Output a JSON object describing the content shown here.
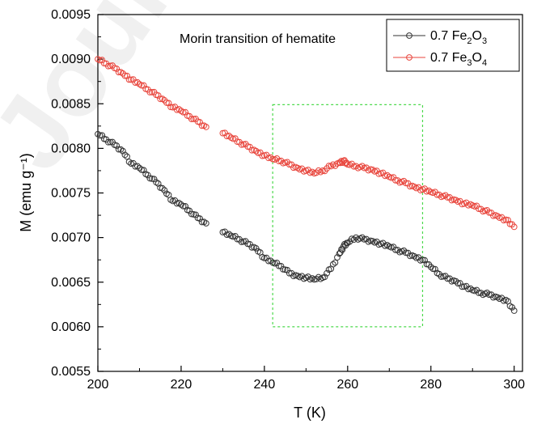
{
  "watermark_text": "Journal",
  "chart_data": {
    "type": "scatter",
    "title": "",
    "annotation": "Morin transition of hematite",
    "xlabel": "T (K)",
    "ylabel": "M (emu g⁻¹)",
    "xlim": [
      200,
      302
    ],
    "ylim": [
      0.0055,
      0.0095
    ],
    "xticks": [
      "200",
      "220",
      "240",
      "260",
      "280",
      "300"
    ],
    "yticks": [
      "0.0055",
      "0.0060",
      "0.0065",
      "0.0070",
      "0.0075",
      "0.0080",
      "0.0085",
      "0.0090",
      "0.0095"
    ],
    "grid": false,
    "legend_position": "top-right",
    "highlight_box": {
      "x": [
        242,
        278
      ],
      "y": [
        0.006,
        0.00849
      ],
      "color": "#4cd94c"
    },
    "series": [
      {
        "name": "0.7 Fe2O3",
        "label_parts": [
          "0.7 Fe",
          "2",
          "O",
          "3"
        ],
        "color": "#333333",
        "points": [
          [
            200,
            0.00816
          ],
          [
            202,
            0.0081
          ],
          [
            204,
            0.00804
          ],
          [
            206,
            0.00797
          ],
          [
            208,
            0.00783
          ],
          [
            210,
            0.00778
          ],
          [
            212,
            0.0077
          ],
          [
            214,
            0.00762
          ],
          [
            216,
            0.00753
          ],
          [
            218,
            0.00741
          ],
          [
            220,
            0.00737
          ],
          [
            222,
            0.0073
          ],
          [
            224,
            0.00722
          ],
          [
            226,
            0.00716
          ],
          [
            230,
            0.00706
          ],
          [
            232,
            0.00702
          ],
          [
            234,
            0.00698
          ],
          [
            236,
            0.00693
          ],
          [
            238,
            0.00688
          ],
          [
            240,
            0.00677
          ],
          [
            242,
            0.00672
          ],
          [
            244,
            0.00668
          ],
          [
            246,
            0.0066
          ],
          [
            248,
            0.00657
          ],
          [
            250,
            0.00655
          ],
          [
            252,
            0.00653
          ],
          [
            254,
            0.00655
          ],
          [
            256,
            0.00665
          ],
          [
            258,
            0.00682
          ],
          [
            259,
            0.0069
          ],
          [
            260,
            0.00694
          ],
          [
            262,
            0.007
          ],
          [
            264,
            0.00698
          ],
          [
            266,
            0.00696
          ],
          [
            268,
            0.00693
          ],
          [
            270,
            0.0069
          ],
          [
            272,
            0.00686
          ],
          [
            274,
            0.00683
          ],
          [
            276,
            0.00679
          ],
          [
            278,
            0.00675
          ],
          [
            280,
            0.00667
          ],
          [
            282,
            0.00659
          ],
          [
            284,
            0.00654
          ],
          [
            286,
            0.00651
          ],
          [
            288,
            0.00645
          ],
          [
            290,
            0.00641
          ],
          [
            292,
            0.00638
          ],
          [
            294,
            0.00636
          ],
          [
            296,
            0.00633
          ],
          [
            298,
            0.0063
          ],
          [
            300,
            0.00618
          ]
        ]
      },
      {
        "name": "0.7 Fe3O4",
        "label_parts": [
          "0.7 Fe",
          "3",
          "O",
          "4"
        ],
        "color": "#e8453c",
        "points": [
          [
            200,
            0.009
          ],
          [
            202,
            0.00895
          ],
          [
            204,
            0.0089
          ],
          [
            206,
            0.00884
          ],
          [
            208,
            0.00877
          ],
          [
            210,
            0.00872
          ],
          [
            212,
            0.00866
          ],
          [
            214,
            0.0086
          ],
          [
            216,
            0.00854
          ],
          [
            218,
            0.00846
          ],
          [
            220,
            0.00842
          ],
          [
            222,
            0.00836
          ],
          [
            224,
            0.0083
          ],
          [
            226,
            0.00824
          ],
          [
            230,
            0.00817
          ],
          [
            232,
            0.00812
          ],
          [
            234,
            0.00807
          ],
          [
            236,
            0.00802
          ],
          [
            238,
            0.00797
          ],
          [
            240,
            0.00792
          ],
          [
            242,
            0.00788
          ],
          [
            244,
            0.00786
          ],
          [
            246,
            0.00782
          ],
          [
            248,
            0.00778
          ],
          [
            250,
            0.00775
          ],
          [
            252,
            0.00772
          ],
          [
            254,
            0.00775
          ],
          [
            256,
            0.0078
          ],
          [
            258,
            0.00784
          ],
          [
            259,
            0.00786
          ],
          [
            260,
            0.00782
          ],
          [
            262,
            0.0078
          ],
          [
            264,
            0.00778
          ],
          [
            266,
            0.00776
          ],
          [
            268,
            0.00772
          ],
          [
            270,
            0.00768
          ],
          [
            272,
            0.00764
          ],
          [
            274,
            0.00761
          ],
          [
            276,
            0.00757
          ],
          [
            278,
            0.00754
          ],
          [
            280,
            0.00751
          ],
          [
            282,
            0.00748
          ],
          [
            284,
            0.00745
          ],
          [
            286,
            0.00742
          ],
          [
            288,
            0.00738
          ],
          [
            290,
            0.00736
          ],
          [
            292,
            0.00732
          ],
          [
            294,
            0.00728
          ],
          [
            296,
            0.00724
          ],
          [
            298,
            0.0072
          ],
          [
            300,
            0.00712
          ]
        ]
      }
    ]
  }
}
